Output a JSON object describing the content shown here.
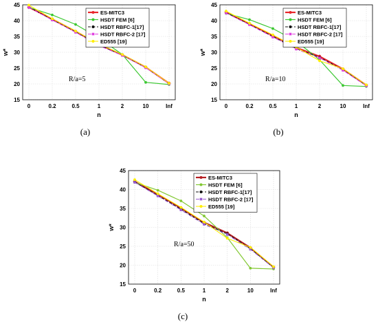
{
  "chart_data": [
    {
      "type": "line",
      "panel_label": "(a)",
      "annotation": "R/a=5",
      "xlabel": "n",
      "ylabel": "w*",
      "categories": [
        "0",
        "0.2",
        "0.5",
        "1",
        "2",
        "10",
        "Inf"
      ],
      "ylim": [
        15,
        45
      ],
      "yticks": [
        15,
        20,
        25,
        30,
        35,
        40,
        45
      ],
      "grid": true,
      "legend_position": "top-right",
      "series": [
        {
          "name": "ES-MITC3",
          "color": "#e8262a",
          "marker": "circle",
          "dash": "solid",
          "width": 2.2,
          "values": [
            44.2,
            40.5,
            36.6,
            32.5,
            29.2,
            25.3,
            20.2
          ]
        },
        {
          "name": "HSDT FEM [6]",
          "color": "#3cc832",
          "marker": "circle",
          "dash": "solid",
          "width": 1.2,
          "values": [
            44.2,
            41.8,
            38.8,
            34.5,
            29.3,
            20.5,
            19.8
          ]
        },
        {
          "name": "HSDT RBFC-1[17]",
          "color": "#111111",
          "marker": "circle",
          "dash": "dash",
          "width": 1.1,
          "values": [
            44.3,
            40.3,
            36.5,
            32.3,
            29.1,
            25.2,
            20.1
          ]
        },
        {
          "name": "HSDT RBFC-2 [17]",
          "color": "#e040e0",
          "marker": "square",
          "dash": "dashdot",
          "width": 1.1,
          "values": [
            44.2,
            40.2,
            36.3,
            32.1,
            29.0,
            25.1,
            20.0
          ]
        },
        {
          "name": "ED555 [19]",
          "color": "#ffee00",
          "marker": "circle",
          "dash": "solid",
          "width": 1.1,
          "values": [
            44.9,
            40.6,
            36.7,
            32.6,
            29.3,
            25.4,
            20.2
          ]
        }
      ]
    },
    {
      "type": "line",
      "panel_label": "(b)",
      "annotation": "R/a=10",
      "xlabel": "n",
      "ylabel": "w*",
      "categories": [
        "0",
        "0.2",
        "0.5",
        "1",
        "2",
        "10",
        "Inf"
      ],
      "ylim": [
        15,
        45
      ],
      "yticks": [
        15,
        20,
        25,
        30,
        35,
        40,
        45
      ],
      "grid": true,
      "legend_position": "top-right",
      "series": [
        {
          "name": "ES-MITC3",
          "color": "#e8262a",
          "marker": "circle",
          "dash": "solid",
          "width": 2.2,
          "values": [
            42.7,
            39.0,
            35.3,
            31.5,
            28.7,
            24.7,
            19.6
          ]
        },
        {
          "name": "HSDT FEM [6]",
          "color": "#3cc832",
          "marker": "circle",
          "dash": "solid",
          "width": 1.2,
          "values": [
            42.3,
            40.3,
            37.5,
            33.5,
            27.6,
            19.5,
            19.2
          ]
        },
        {
          "name": "HSDT RBFC-1[17]",
          "color": "#111111",
          "marker": "circle",
          "dash": "dash",
          "width": 1.1,
          "values": [
            42.5,
            38.8,
            35.0,
            31.2,
            28.4,
            24.5,
            19.5
          ]
        },
        {
          "name": "HSDT RBFC-2 [17]",
          "color": "#e040e0",
          "marker": "square",
          "dash": "dashdot",
          "width": 1.1,
          "values": [
            42.4,
            38.7,
            34.8,
            31.0,
            28.2,
            24.3,
            19.4
          ]
        },
        {
          "name": "ED555 [19]",
          "color": "#ffee00",
          "marker": "circle",
          "dash": "solid",
          "width": 1.1,
          "values": [
            43.0,
            39.2,
            35.5,
            31.6,
            27.3,
            24.8,
            19.7
          ]
        }
      ]
    },
    {
      "type": "line",
      "panel_label": "(c)",
      "annotation": "R/a=50",
      "xlabel": "n",
      "ylabel": "w*",
      "categories": [
        "0",
        "0.2",
        "0.5",
        "1",
        "2",
        "10",
        "Inf"
      ],
      "ylim": [
        15,
        45
      ],
      "yticks": [
        15,
        20,
        25,
        30,
        35,
        40,
        45
      ],
      "grid": true,
      "legend_position": "top-right",
      "series": [
        {
          "name": "ES-MITC3",
          "color": "#b51e22",
          "marker": "circle",
          "dash": "solid",
          "width": 2.2,
          "values": [
            42.1,
            38.7,
            35.1,
            31.3,
            28.5,
            24.6,
            19.5
          ]
        },
        {
          "name": "HSDT FEM [6]",
          "color": "#82c832",
          "marker": "circle",
          "dash": "solid",
          "width": 1.2,
          "values": [
            41.9,
            39.8,
            37.0,
            33.0,
            27.3,
            19.2,
            19.0
          ]
        },
        {
          "name": "HSDT RBFC-1[17]",
          "color": "#111111",
          "marker": "circle",
          "dash": "dash",
          "width": 1.1,
          "values": [
            42.0,
            38.4,
            34.8,
            31.0,
            28.3,
            24.4,
            19.4
          ]
        },
        {
          "name": "HSDT RBFC-2 [17]",
          "color": "#9a5ad2",
          "marker": "square",
          "dash": "dashdot",
          "width": 1.1,
          "values": [
            41.9,
            38.3,
            34.6,
            30.8,
            28.1,
            24.2,
            19.3
          ]
        },
        {
          "name": "ED555 [19]",
          "color": "#ffee00",
          "marker": "circle",
          "dash": "solid",
          "width": 1.1,
          "values": [
            42.6,
            38.9,
            35.3,
            31.4,
            27.1,
            24.7,
            19.6
          ]
        }
      ]
    }
  ]
}
